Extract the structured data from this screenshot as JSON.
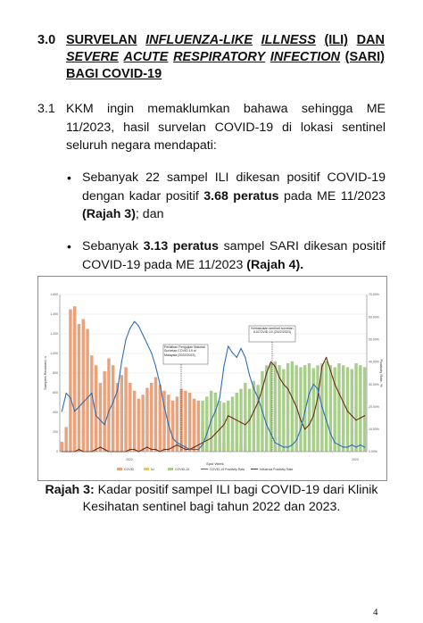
{
  "section": {
    "number": "3.0",
    "title_line1_words": [
      "SURVELAN",
      "INFLUENZA-LIKE",
      "ILLNESS",
      "(ILI)",
      "DAN"
    ],
    "title_line2_words": [
      "SEVERE",
      "ACUTE",
      "RESPIRATORY",
      "INFECTION",
      "(SARI)"
    ],
    "title_line3": "BAGI COVID-19"
  },
  "subsection": {
    "number": "3.1",
    "text": "KKM ingin memaklumkan bahawa sehingga ME 11/2023, hasil survelan COVID-19 di lokasi sentinel seluruh negara mendapati:"
  },
  "bullets": [
    {
      "symbol": "•",
      "pre": "Sebanyak 22 sampel ILI dikesan positif COVID-19 dengan kadar positif ",
      "bold1": "3.68 peratus",
      "mid": " pada ME 11/2023 ",
      "bold2": "(Rajah 3)",
      "post": "; dan"
    },
    {
      "symbol": "•",
      "pre": "Sebanyak ",
      "bold1": "3.13 peratus",
      "mid": " sampel SARI dikesan positif COVID-19 pada ME 11/2023 ",
      "bold2": "(Rajah 4).",
      "post": ""
    }
  ],
  "chart_data": {
    "type": "bar",
    "ylabel": "Samples Received, n",
    "y2label": "Positivity Rate, %",
    "xlabel": "Epid Week",
    "ylim": [
      0,
      1600
    ],
    "y2lim": [
      0,
      70
    ],
    "y_ticks": [
      "0",
      "200",
      "400",
      "600",
      "800",
      "1,000",
      "1,200",
      "1,400",
      "1,600"
    ],
    "y2_ticks": [
      "0.00%",
      "10.00%",
      "20.00%",
      "30.00%",
      "40.00%",
      "50.00%",
      "60.00%",
      "70.00%"
    ],
    "x_group_labels": [
      "2022",
      "2023"
    ],
    "annotations": [
      "Peralihan Pengujian Makmal Survelan COVID-19 di Malaysia (2022/2023)",
      "Kemasukan sentinel survelan ILI/COVID-19 (2022/2023)"
    ],
    "legend": [
      "COVID",
      "ILI",
      "COVID-19",
      "COVID-19 Positivity Rate",
      "Influenza Positivity Rate"
    ],
    "colors": {
      "covid": "#e8a27c",
      "ili": "#e3c86a",
      "covid19": "#a8cf8a",
      "covid_rate": "#2e6fb5",
      "flu_rate": "#6b2e1a"
    },
    "bars_covid": [
      100,
      250,
      1450,
      1480,
      1300,
      1350,
      1250,
      980,
      880,
      700,
      820,
      950,
      880,
      700,
      780,
      860,
      700,
      620,
      540,
      580,
      650,
      700,
      760,
      680,
      620,
      580,
      520,
      560,
      640,
      620,
      600,
      540,
      520,
      300,
      250,
      140,
      120,
      100,
      90,
      110,
      100,
      80,
      60,
      40,
      20,
      0,
      0,
      0,
      0,
      0,
      0,
      0,
      0,
      0,
      0,
      0,
      0,
      0,
      0,
      0,
      0,
      0,
      0,
      0,
      0,
      0,
      0,
      0,
      0,
      0,
      0,
      0
    ],
    "bars_covid19": [
      0,
      0,
      0,
      0,
      0,
      0,
      0,
      0,
      0,
      0,
      0,
      0,
      0,
      0,
      0,
      0,
      0,
      0,
      0,
      0,
      0,
      0,
      0,
      0,
      0,
      0,
      0,
      0,
      0,
      0,
      0,
      0,
      0,
      520,
      560,
      620,
      600,
      520,
      500,
      520,
      560,
      600,
      640,
      700,
      640,
      720,
      680,
      820,
      880,
      900,
      920,
      880,
      840,
      900,
      920,
      880,
      860,
      880,
      900,
      850,
      880,
      900,
      920,
      880,
      860,
      900,
      880,
      860,
      840,
      900,
      880,
      860
    ],
    "covid_rate": [
      18,
      26,
      24,
      18,
      20,
      22,
      24,
      26,
      16,
      14,
      12,
      18,
      22,
      27,
      40,
      50,
      55,
      58,
      56,
      52,
      48,
      44,
      38,
      30,
      20,
      12,
      6,
      4,
      3,
      2,
      1,
      1,
      1,
      3,
      8,
      14,
      18,
      24,
      38,
      47,
      44,
      42,
      46,
      42,
      34,
      28,
      24,
      18,
      12,
      8,
      4,
      3,
      2,
      2,
      3,
      5,
      10,
      18,
      26,
      30,
      28,
      20,
      14,
      8,
      4,
      3,
      2,
      2,
      3,
      2,
      3,
      2
    ],
    "flu_rate": [
      0,
      0,
      0,
      0,
      1,
      0,
      0,
      0,
      1,
      2,
      1,
      0,
      0,
      0,
      0,
      0,
      1,
      1,
      0,
      1,
      2,
      1,
      1,
      0,
      1,
      1,
      2,
      3,
      2,
      1,
      1,
      2,
      3,
      4,
      5,
      6,
      8,
      10,
      12,
      16,
      15,
      14,
      13,
      12,
      14,
      18,
      22,
      28,
      35,
      40,
      38,
      33,
      30,
      28,
      24,
      20,
      14,
      10,
      12,
      16,
      24,
      38,
      42,
      36,
      30,
      26,
      22,
      18,
      16,
      14,
      15,
      16
    ]
  },
  "figure_caption": {
    "label": "Rajah 3:",
    "text": " Kadar positif sampel ILI bagi COVID-19 dari Klinik Kesihatan sentinel bagi tahun 2022 dan 2023."
  },
  "page_number": "4"
}
